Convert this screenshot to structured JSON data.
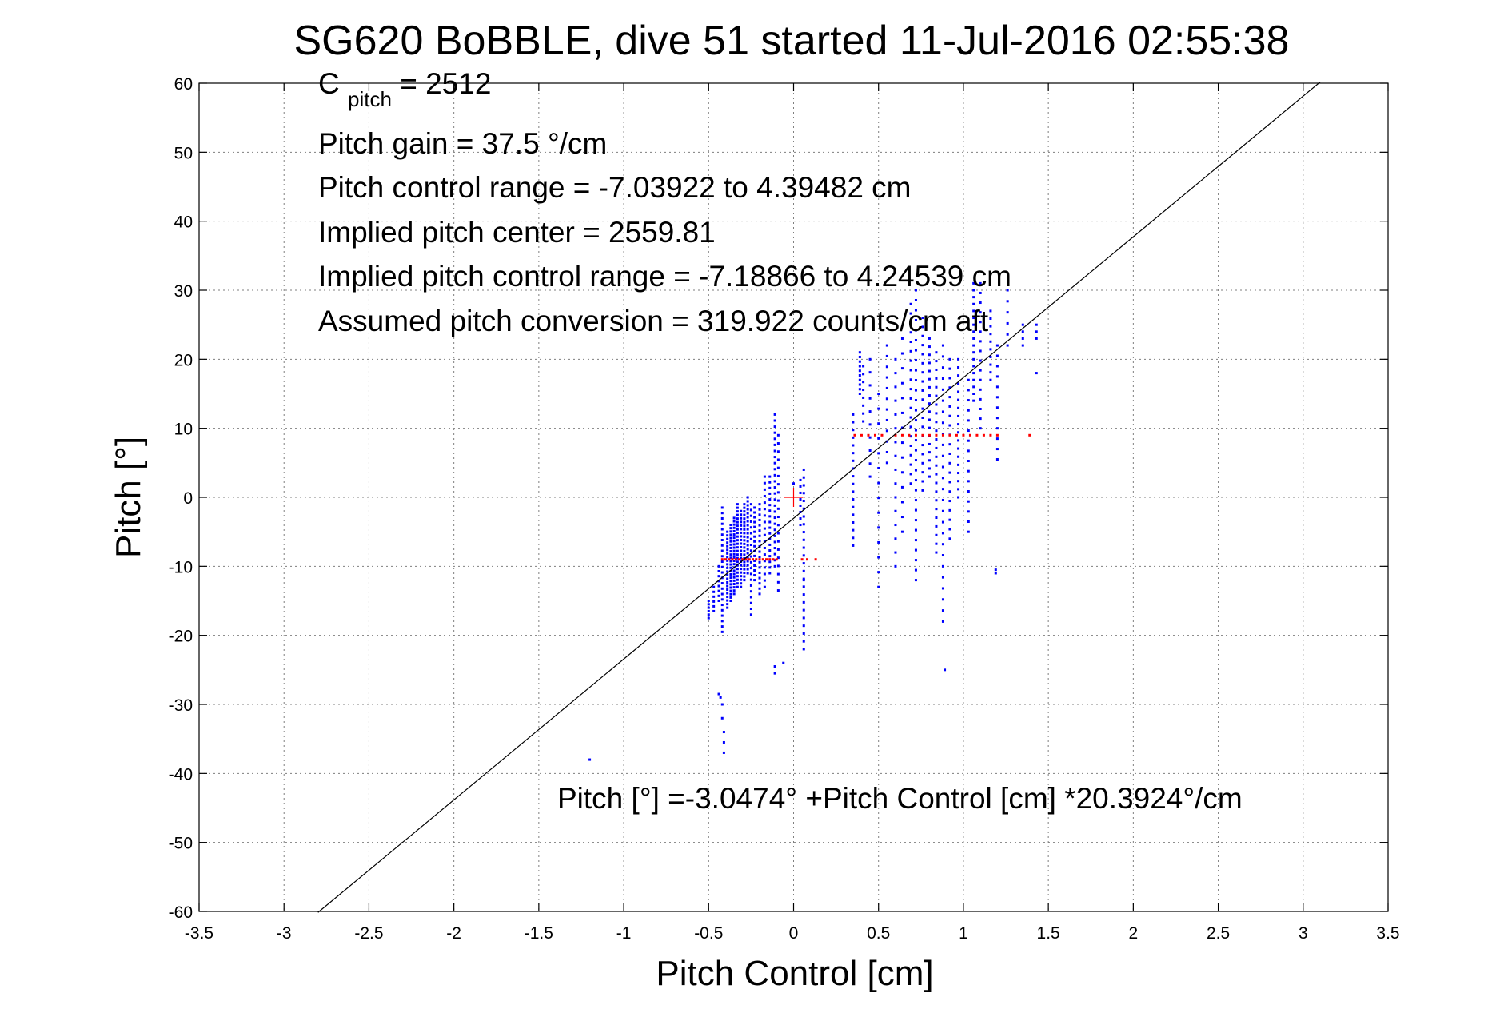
{
  "chart_data": {
    "type": "scatter",
    "title": "SG620 BoBBLE, dive 51 started 11-Jul-2016 02:55:38",
    "xlabel": "Pitch Control [cm]",
    "ylabel": "Pitch [°]",
    "xlim": [
      -3.5,
      3.5
    ],
    "ylim": [
      -60,
      60
    ],
    "grid": true,
    "xticks": [
      -3.5,
      -3,
      -2.5,
      -2,
      -1.5,
      -1,
      -0.5,
      0,
      0.5,
      1,
      1.5,
      2,
      2.5,
      3,
      3.5
    ],
    "yticks": [
      -60,
      -50,
      -40,
      -30,
      -20,
      -10,
      0,
      10,
      20,
      30,
      40,
      50,
      60
    ],
    "xtick_labels": [
      "-3.5",
      "-3",
      "-2.5",
      "-2",
      "-1.5",
      "-1",
      "-0.5",
      "0",
      "0.5",
      "1",
      "1.5",
      "2",
      "2.5",
      "3",
      "3.5"
    ],
    "ytick_labels": [
      "-60",
      "-50",
      "-40",
      "-30",
      "-20",
      "-10",
      "0",
      "10",
      "20",
      "30",
      "40",
      "50",
      "60"
    ],
    "annotations": {
      "cpitch_main": "C",
      "cpitch_sub": "pitch",
      "cpitch_value": " = 2512",
      "pitch_gain": "Pitch gain = 37.5 °/cm",
      "pitch_control_range": "Pitch control range = -7.03922 to 4.39482 cm",
      "implied_pitch_center": "Implied pitch center = 2559.81",
      "implied_pitch_control_range": "Implied pitch control range = -7.18866 to 4.24539 cm",
      "assumed_pitch_conversion": "Assumed pitch conversion = 319.922 counts/cm aft",
      "fit_equation": "Pitch [°] =-3.0474° +Pitch Control [cm] *20.3924°/cm"
    },
    "fit_line": {
      "intercept": -3.0474,
      "slope": 20.3924,
      "x_from": -2.8,
      "x_to": 3.1
    },
    "center_marker": {
      "x": 0,
      "y": 0,
      "color": "#ff0000"
    },
    "series": [
      {
        "color": "#0000ff",
        "clusters": [
          {
            "x": -0.5,
            "y_from": -17.5,
            "y_to": -15.0,
            "n": 6
          },
          {
            "x": -0.47,
            "y_from": -16.5,
            "y_to": -13.0,
            "n": 6
          },
          {
            "x": -0.44,
            "y_from": -15.0,
            "y_to": -10.0,
            "n": 8
          },
          {
            "x": -0.42,
            "y_from": -19.5,
            "y_to": -1.5,
            "n": 24
          },
          {
            "x": -0.39,
            "y_from": -16.0,
            "y_to": -5.0,
            "n": 22
          },
          {
            "x": -0.37,
            "y_from": -15.0,
            "y_to": -4.0,
            "n": 24
          },
          {
            "x": -0.35,
            "y_from": -14.0,
            "y_to": -3.0,
            "n": 24
          },
          {
            "x": -0.33,
            "y_from": -13.0,
            "y_to": -1.0,
            "n": 24
          },
          {
            "x": -0.31,
            "y_from": -13.0,
            "y_to": -2.0,
            "n": 22
          },
          {
            "x": -0.29,
            "y_from": -12.0,
            "y_to": -1.0,
            "n": 22
          },
          {
            "x": -0.27,
            "y_from": -11.0,
            "y_to": 0.0,
            "n": 20
          },
          {
            "x": -0.25,
            "y_from": -17.0,
            "y_to": -1.0,
            "n": 20
          },
          {
            "x": -0.23,
            "y_from": -12.0,
            "y_to": -1.5,
            "n": 16
          },
          {
            "x": -0.2,
            "y_from": -14.0,
            "y_to": -1.0,
            "n": 18
          },
          {
            "x": -0.17,
            "y_from": -13.0,
            "y_to": 3.0,
            "n": 18
          },
          {
            "x": -0.14,
            "y_from": -11.0,
            "y_to": 3.0,
            "n": 18
          },
          {
            "x": -0.11,
            "y_from": -10.0,
            "y_to": 12.0,
            "n": 26
          },
          {
            "x": -0.09,
            "y_from": -13.5,
            "y_to": 9.0,
            "n": 20
          },
          {
            "x": 0.04,
            "y_from": -4.0,
            "y_to": 2.5,
            "n": 8
          },
          {
            "x": 0.06,
            "y_from": -22.0,
            "y_to": 4.0,
            "n": 24
          },
          {
            "x": 0.35,
            "y_from": -7.0,
            "y_to": 12.0,
            "n": 18
          },
          {
            "x": 0.39,
            "y_from": 15.0,
            "y_to": 21.0,
            "n": 10
          },
          {
            "x": 0.41,
            "y_from": 11.0,
            "y_to": 19.0,
            "n": 8
          },
          {
            "x": 0.45,
            "y_from": 3.0,
            "y_to": 20.0,
            "n": 10
          },
          {
            "x": 0.5,
            "y_from": -13.0,
            "y_to": 15.0,
            "n": 14
          },
          {
            "x": 0.55,
            "y_from": 5.0,
            "y_to": 22.0,
            "n": 12
          },
          {
            "x": 0.6,
            "y_from": -10.0,
            "y_to": 20.0,
            "n": 16
          },
          {
            "x": 0.64,
            "y_from": -5.0,
            "y_to": 23.0,
            "n": 14
          },
          {
            "x": 0.69,
            "y_from": 2.0,
            "y_to": 28.0,
            "n": 20
          },
          {
            "x": 0.72,
            "y_from": -12.0,
            "y_to": 30.0,
            "n": 30
          },
          {
            "x": 0.76,
            "y_from": 1.0,
            "y_to": 26.0,
            "n": 20
          },
          {
            "x": 0.8,
            "y_from": 3.0,
            "y_to": 23.0,
            "n": 18
          },
          {
            "x": 0.84,
            "y_from": -8.0,
            "y_to": 21.0,
            "n": 24
          },
          {
            "x": 0.88,
            "y_from": -18.0,
            "y_to": 22.0,
            "n": 26
          },
          {
            "x": 0.92,
            "y_from": -6.0,
            "y_to": 20.0,
            "n": 20
          },
          {
            "x": 0.97,
            "y_from": 0.0,
            "y_to": 20.0,
            "n": 18
          },
          {
            "x": 1.03,
            "y_from": -5.0,
            "y_to": 17.0,
            "n": 16
          },
          {
            "x": 1.06,
            "y_from": 14.0,
            "y_to": 31.0,
            "n": 18
          },
          {
            "x": 1.1,
            "y_from": 10.0,
            "y_to": 31.0,
            "n": 16
          },
          {
            "x": 1.16,
            "y_from": 17.0,
            "y_to": 27.0,
            "n": 10
          },
          {
            "x": 1.2,
            "y_from": 5.5,
            "y_to": 22.0,
            "n": 12
          },
          {
            "x": 1.26,
            "y_from": 22.0,
            "y_to": 30.0,
            "n": 6
          },
          {
            "x": 1.35,
            "y_from": 22.0,
            "y_to": 25.0,
            "n": 4
          },
          {
            "x": 1.43,
            "y_from": 23.0,
            "y_to": 25.0,
            "n": 3
          }
        ],
        "points": [
          {
            "x": -1.2,
            "y": -38
          },
          {
            "x": -0.44,
            "y": -28.5
          },
          {
            "x": -0.43,
            "y": -29.0
          },
          {
            "x": -0.42,
            "y": -30.0
          },
          {
            "x": -0.42,
            "y": -32.0
          },
          {
            "x": -0.41,
            "y": -34.0
          },
          {
            "x": -0.41,
            "y": -35.5
          },
          {
            "x": -0.41,
            "y": -37.0
          },
          {
            "x": -0.11,
            "y": -24.5
          },
          {
            "x": -0.11,
            "y": -25.5
          },
          {
            "x": -0.06,
            "y": -24.0
          },
          {
            "x": 0.06,
            "y": -12.0
          },
          {
            "x": 0.0,
            "y": 2.0
          },
          {
            "x": 0.89,
            "y": -25.0
          },
          {
            "x": 1.19,
            "y": -10.5
          },
          {
            "x": 1.19,
            "y": -11.0
          },
          {
            "x": 1.43,
            "y": 18.0
          }
        ]
      },
      {
        "color": "#ff0000",
        "rows": [
          {
            "y": -9,
            "x": [
              -0.42,
              -0.4,
              -0.38,
              -0.36,
              -0.34,
              -0.32,
              -0.3,
              -0.28,
              -0.26,
              -0.24,
              -0.22,
              -0.2,
              -0.18,
              -0.16,
              -0.14,
              -0.12,
              -0.1,
              0.05,
              0.08,
              0.13
            ]
          },
          {
            "y": 9,
            "x": [
              0.36,
              0.4,
              0.44,
              0.48,
              0.52,
              0.6,
              0.64,
              0.68,
              0.72,
              0.76,
              0.8,
              0.84,
              0.88,
              0.92,
              0.96,
              1.0,
              1.04,
              1.08,
              1.12,
              1.16,
              1.2,
              1.39
            ]
          }
        ]
      }
    ]
  }
}
